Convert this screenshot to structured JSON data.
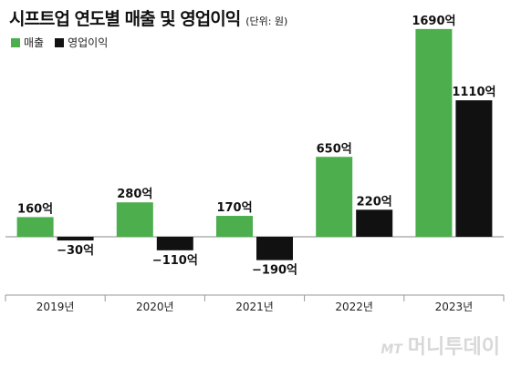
{
  "title": "시프트업 연도별 매출 및 영업이익",
  "unit_note": "(단위: 원)",
  "watermark": {
    "logo": "MT",
    "name": "머니투데이"
  },
  "chart_data": {
    "type": "bar",
    "title": "시프트업 연도별 매출 및 영업이익",
    "unit": "원",
    "categories": [
      "2019년",
      "2020년",
      "2021년",
      "2022년",
      "2023년"
    ],
    "series": [
      {
        "name": "매출",
        "color": "#4cae4c",
        "values": [
          160,
          280,
          170,
          650,
          1690
        ],
        "labels": [
          "160억",
          "280억",
          "170억",
          "650억",
          "1690억"
        ]
      },
      {
        "name": "영업이익",
        "color": "#111111",
        "values": [
          -30,
          -110,
          -190,
          220,
          1110
        ],
        "labels": [
          "−30억",
          "−110억",
          "−190억",
          "220억",
          "1110억"
        ]
      }
    ],
    "grid": false,
    "legend_position": "top-left"
  }
}
